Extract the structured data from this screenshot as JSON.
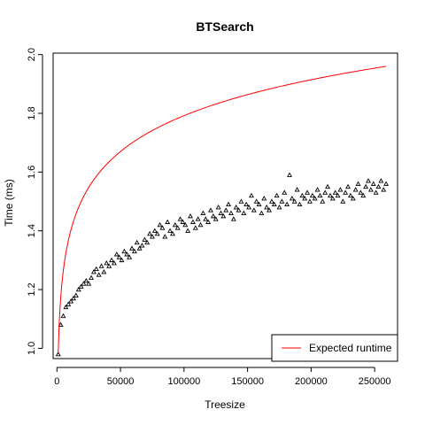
{
  "chart_data": {
    "type": "scatter",
    "title": "BTSearch",
    "xlabel": "Treesize",
    "ylabel": "Time (ms)",
    "xlim": [
      -3000,
      268000
    ],
    "ylim": [
      0.965,
      2.005
    ],
    "x_ticks": [
      0,
      50000,
      100000,
      150000,
      200000,
      250000
    ],
    "y_ticks": [
      1.0,
      1.2,
      1.4,
      1.6,
      1.8,
      2.0
    ],
    "x_tick_labels": [
      "0",
      "50000",
      "100000",
      "150000",
      "200000",
      "250000"
    ],
    "y_tick_labels": [
      "1.0",
      "1.2",
      "1.4",
      "1.6",
      "1.8",
      "2.0"
    ],
    "grid": false,
    "legend": {
      "position": "bottom-right",
      "entries": [
        "Expected runtime"
      ]
    },
    "series": [
      {
        "kind": "scatter",
        "marker": "triangle-open",
        "color": "#000000",
        "x": [
          1000,
          3000,
          5000,
          7000,
          9000,
          11000,
          13000,
          15000,
          17000,
          19000,
          21000,
          23000,
          25000,
          27000,
          29000,
          31000,
          33000,
          35000,
          37000,
          39000,
          41000,
          43000,
          45000,
          47000,
          49000,
          51000,
          53000,
          55000,
          57000,
          59000,
          61000,
          63000,
          65000,
          67000,
          69000,
          71000,
          73000,
          75000,
          77000,
          79000,
          81000,
          83000,
          85000,
          87000,
          89000,
          91000,
          93000,
          95000,
          97000,
          99000,
          101000,
          103000,
          105000,
          107000,
          109000,
          111000,
          113000,
          115000,
          117000,
          119000,
          121000,
          123000,
          125000,
          127000,
          129000,
          131000,
          133000,
          135000,
          137000,
          139000,
          141000,
          143000,
          145000,
          147000,
          149000,
          151000,
          153000,
          155000,
          157000,
          159000,
          161000,
          163000,
          165000,
          167000,
          169000,
          171000,
          173000,
          175000,
          177000,
          179000,
          181000,
          183000,
          185000,
          187000,
          189000,
          191000,
          193000,
          195000,
          197000,
          199000,
          201000,
          203000,
          205000,
          207000,
          209000,
          211000,
          213000,
          215000,
          217000,
          219000,
          221000,
          223000,
          225000,
          227000,
          229000,
          231000,
          233000,
          235000,
          237000,
          239000,
          241000,
          243000,
          245000,
          247000,
          249000,
          251000,
          253000,
          255000,
          257000,
          259000
        ],
        "y": [
          0.98,
          1.08,
          1.11,
          1.14,
          1.15,
          1.16,
          1.17,
          1.18,
          1.2,
          1.21,
          1.22,
          1.23,
          1.22,
          1.24,
          1.26,
          1.27,
          1.25,
          1.28,
          1.26,
          1.29,
          1.28,
          1.3,
          1.29,
          1.32,
          1.31,
          1.3,
          1.33,
          1.32,
          1.31,
          1.34,
          1.33,
          1.36,
          1.34,
          1.35,
          1.37,
          1.36,
          1.39,
          1.38,
          1.4,
          1.39,
          1.42,
          1.41,
          1.38,
          1.43,
          1.4,
          1.39,
          1.42,
          1.41,
          1.44,
          1.43,
          1.42,
          1.4,
          1.45,
          1.43,
          1.41,
          1.44,
          1.42,
          1.46,
          1.44,
          1.43,
          1.47,
          1.45,
          1.44,
          1.48,
          1.46,
          1.45,
          1.47,
          1.49,
          1.46,
          1.44,
          1.48,
          1.47,
          1.5,
          1.46,
          1.49,
          1.48,
          1.52,
          1.47,
          1.5,
          1.49,
          1.46,
          1.51,
          1.48,
          1.47,
          1.5,
          1.49,
          1.52,
          1.48,
          1.5,
          1.53,
          1.49,
          1.59,
          1.51,
          1.5,
          1.54,
          1.49,
          1.52,
          1.51,
          1.53,
          1.5,
          1.52,
          1.51,
          1.54,
          1.52,
          1.5,
          1.53,
          1.55,
          1.52,
          1.51,
          1.53,
          1.52,
          1.54,
          1.5,
          1.53,
          1.55,
          1.52,
          1.51,
          1.54,
          1.56,
          1.53,
          1.52,
          1.55,
          1.57,
          1.54,
          1.56,
          1.53,
          1.55,
          1.57,
          1.54,
          1.56
        ]
      },
      {
        "kind": "line",
        "name": "Expected runtime",
        "color": "#ff0000",
        "model": "log2",
        "x_range": [
          1000,
          259000
        ],
        "value_at_x_range": [
          0.98,
          1.96
        ]
      }
    ]
  }
}
